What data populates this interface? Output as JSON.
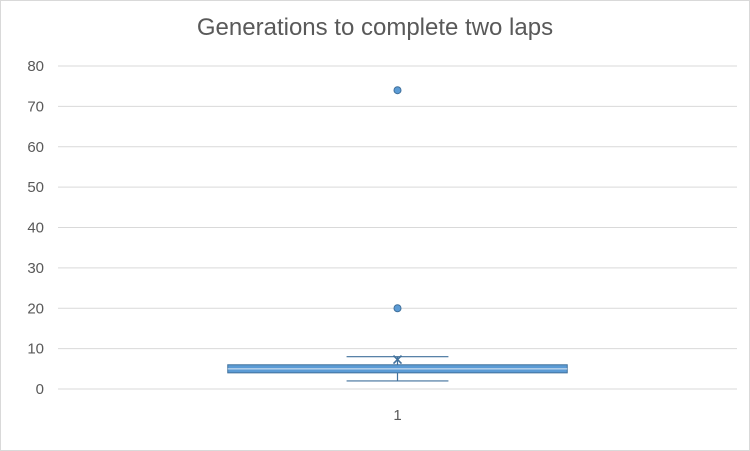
{
  "chart_data": {
    "type": "box",
    "title": "Generations to complete two laps",
    "xlabel": "",
    "ylabel": "",
    "categories": [
      "1"
    ],
    "y_ticks": [
      0,
      10,
      20,
      30,
      40,
      50,
      60,
      70,
      80
    ],
    "ylim": [
      0,
      80
    ],
    "grid": true,
    "legend": "none",
    "series": [
      {
        "category": "1",
        "whisker_low": 2,
        "q1": 4,
        "median": 5,
        "q3": 6,
        "whisker_high": 8,
        "mean": 7.3,
        "outliers": [
          20,
          74
        ]
      }
    ],
    "colors": {
      "box": "#5b9bd5",
      "box_stroke": "#41719c",
      "grid": "#d9d9d9",
      "text": "#595959"
    }
  }
}
